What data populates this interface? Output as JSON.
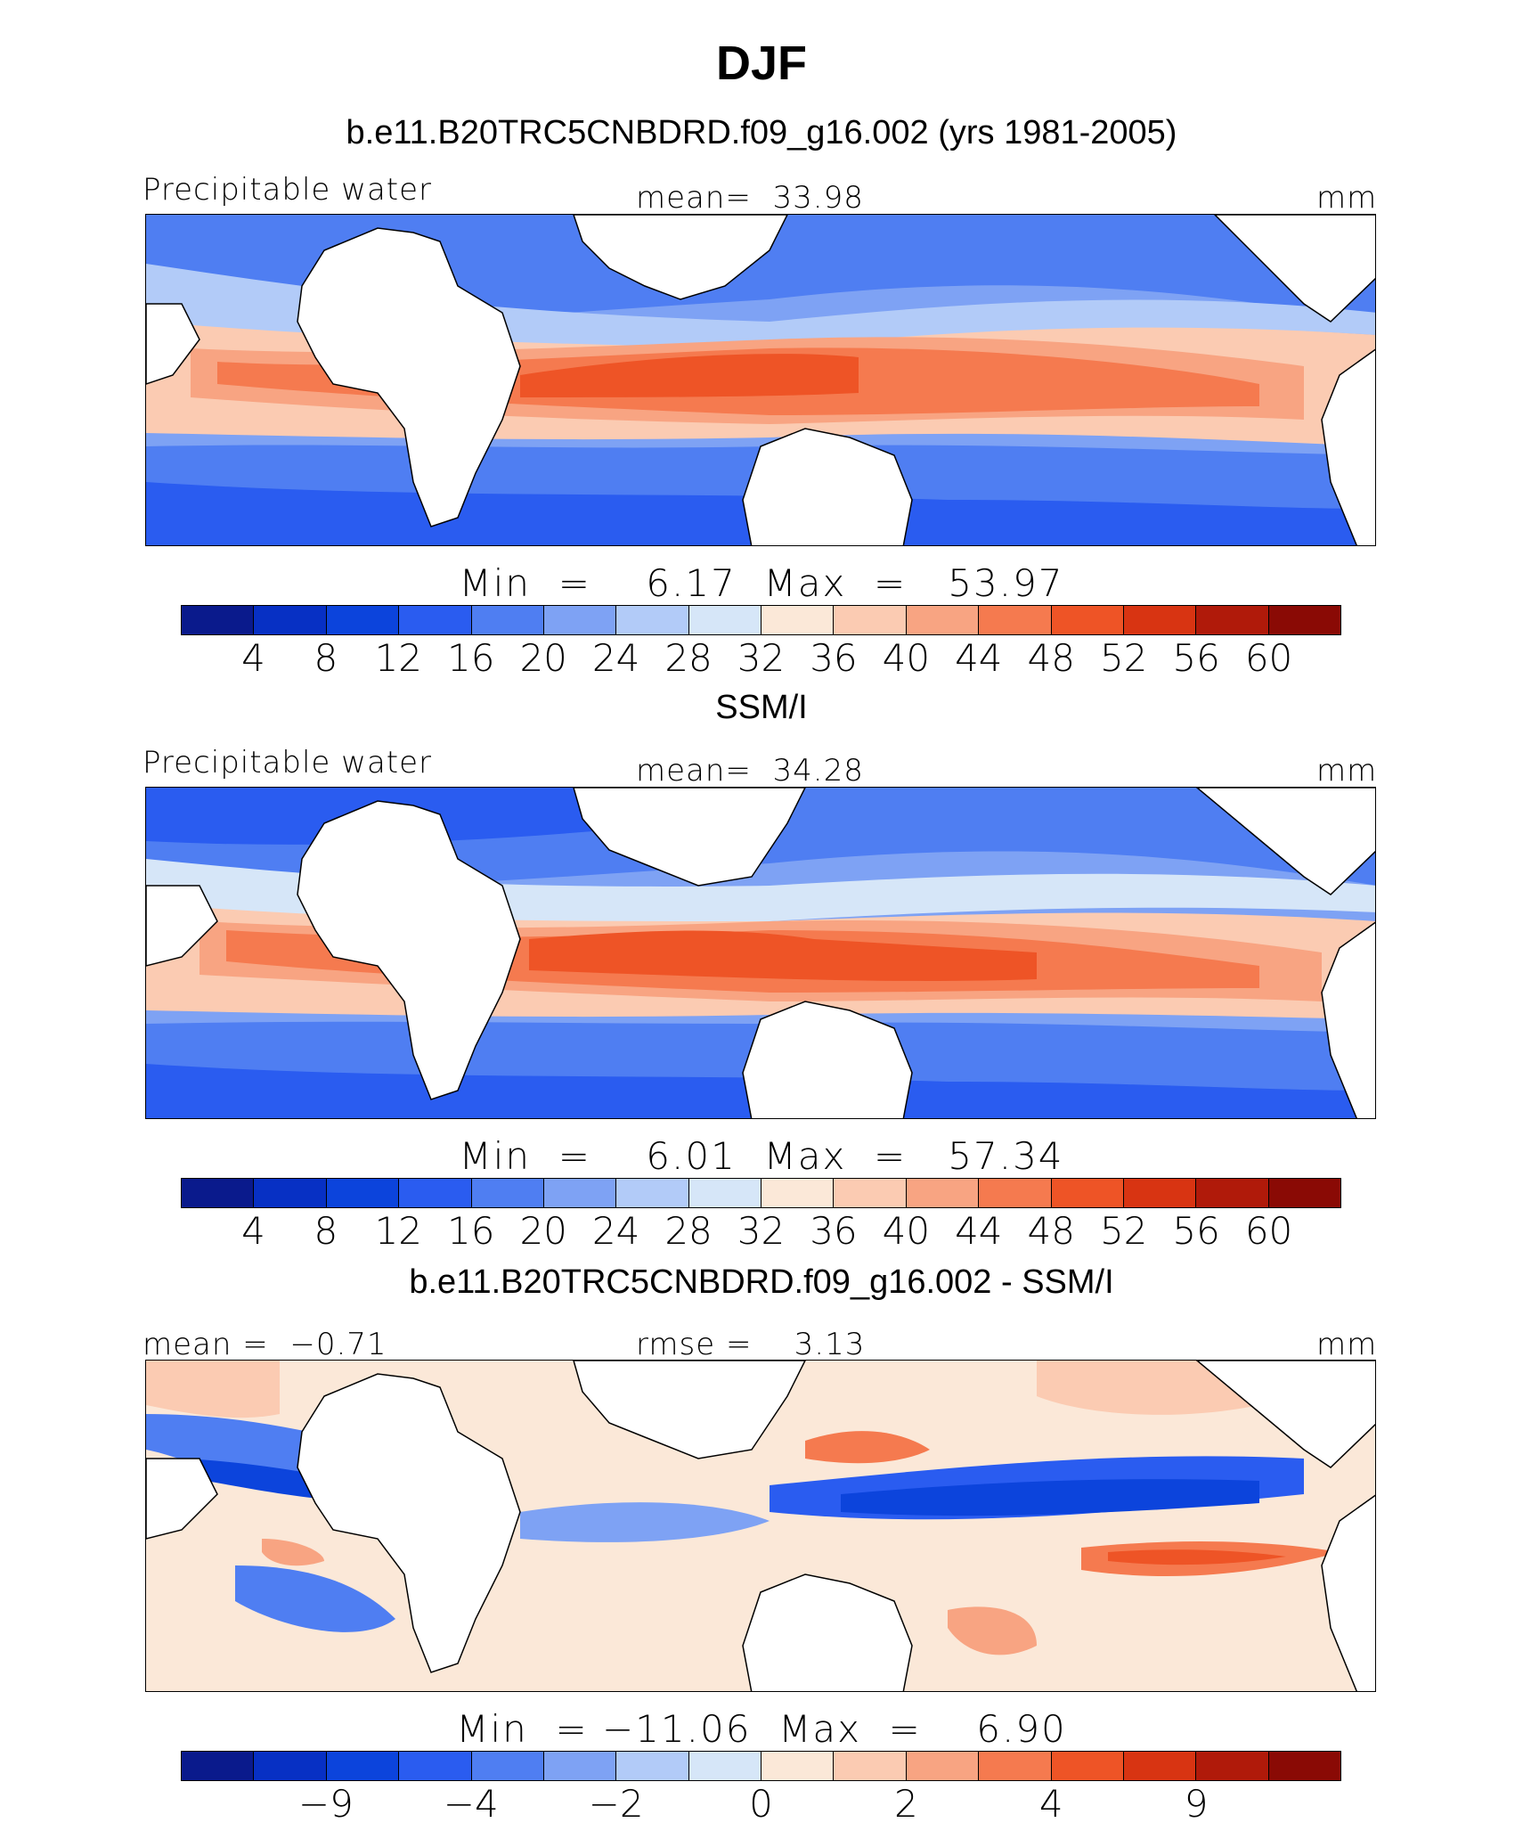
{
  "title": "DJF",
  "colorbar_colors": [
    "#0a1a8c",
    "#0730c4",
    "#0c44dc",
    "#2a5cf0",
    "#4f7ef2",
    "#7ea2f4",
    "#b2cbf8",
    "#d6e6f8",
    "#fbe8d8",
    "#fbcbb2",
    "#f8a482",
    "#f57a4f",
    "#ee5426",
    "#d83412",
    "#b01a0a",
    "#8a0a05"
  ],
  "panels": [
    {
      "title": "b.e11.B20TRC5CNBDRD.f09_g16.002 (yrs 1981-2005)",
      "left_label": "Precipitable water",
      "center_label": "mean=  33.98",
      "units": "mm",
      "min_max": "Min  =    6.17  Max  =   53.97",
      "tick_labels": [
        "4",
        "8",
        "12",
        "16",
        "20",
        "24",
        "28",
        "32",
        "36",
        "40",
        "44",
        "48",
        "52",
        "56",
        "60"
      ]
    },
    {
      "title": "SSM/I",
      "left_label": "Precipitable water",
      "center_label": "mean=  34.28",
      "units": "mm",
      "min_max": "Min  =    6.01  Max  =   57.34",
      "tick_labels": [
        "4",
        "8",
        "12",
        "16",
        "20",
        "24",
        "28",
        "32",
        "36",
        "40",
        "44",
        "48",
        "52",
        "56",
        "60"
      ]
    },
    {
      "title": "b.e11.B20TRC5CNBDRD.f09_g16.002 - SSM/I",
      "left_label": "mean =  −0.71",
      "center_label": "rmse =    3.13",
      "units": "mm",
      "min_max": "Min  = −11.06  Max  =    6.90",
      "tick_labels": [
        "−9",
        "−4",
        "−2",
        "0",
        "2",
        "4",
        "9"
      ]
    }
  ]
}
